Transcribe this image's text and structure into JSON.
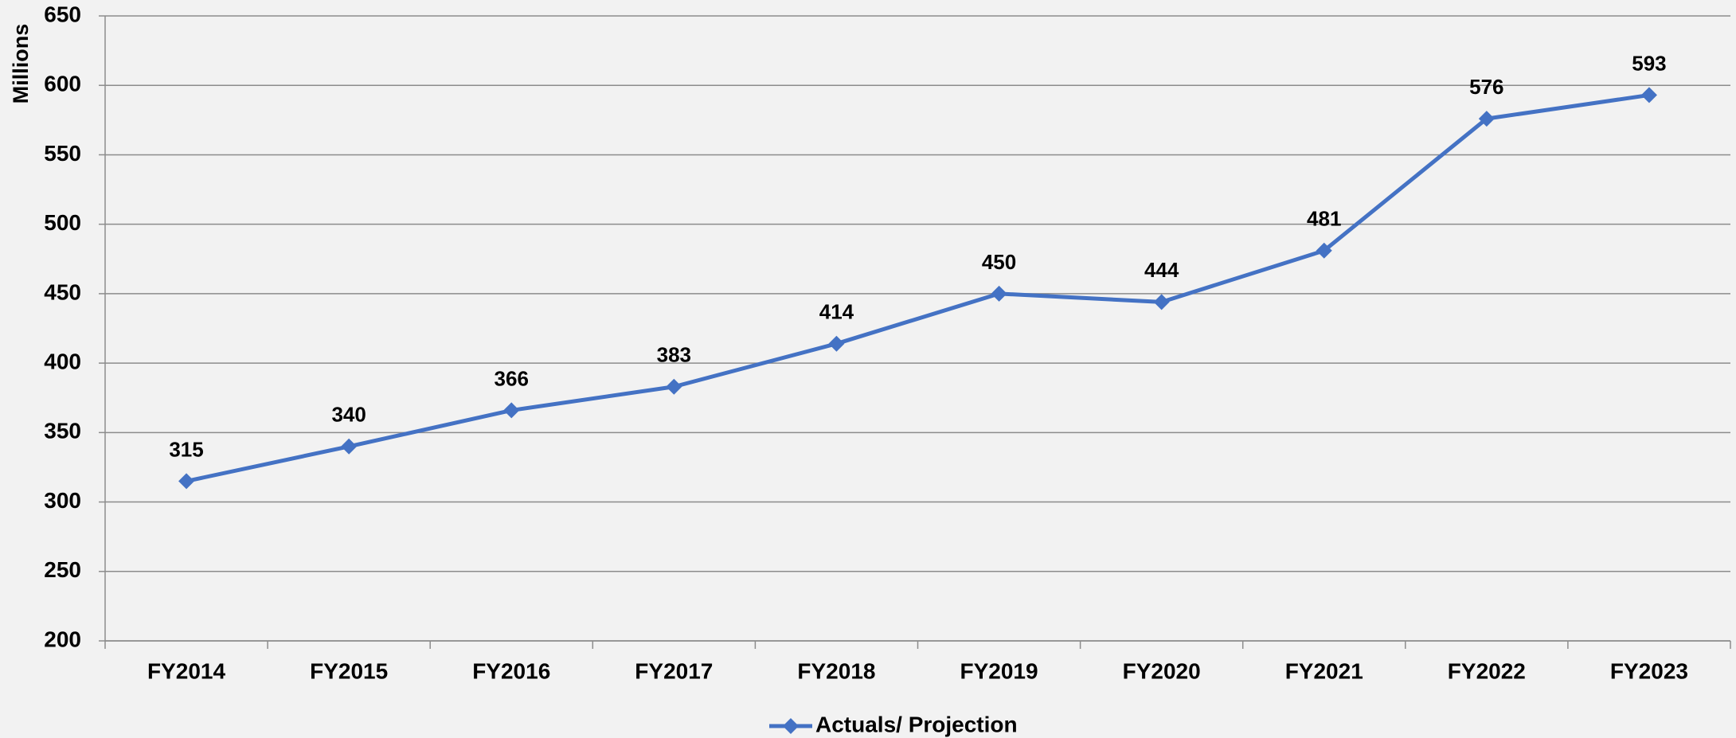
{
  "chart_data": {
    "type": "line",
    "y_label": "Millions",
    "categories": [
      "FY2014",
      "FY2015",
      "FY2016",
      "FY2017",
      "FY2018",
      "FY2019",
      "FY2020",
      "FY2021",
      "FY2022",
      "FY2023"
    ],
    "series": [
      {
        "name": "Actuals/ Projection",
        "color": "#4472c4",
        "values": [
          315,
          340,
          366,
          383,
          414,
          450,
          444,
          481,
          576,
          593
        ]
      }
    ],
    "ylim": [
      200,
      650
    ],
    "yticks": [
      200,
      250,
      300,
      350,
      400,
      450,
      500,
      550,
      600,
      650
    ],
    "grid": true,
    "legend": "bottom",
    "data_labels": true
  }
}
